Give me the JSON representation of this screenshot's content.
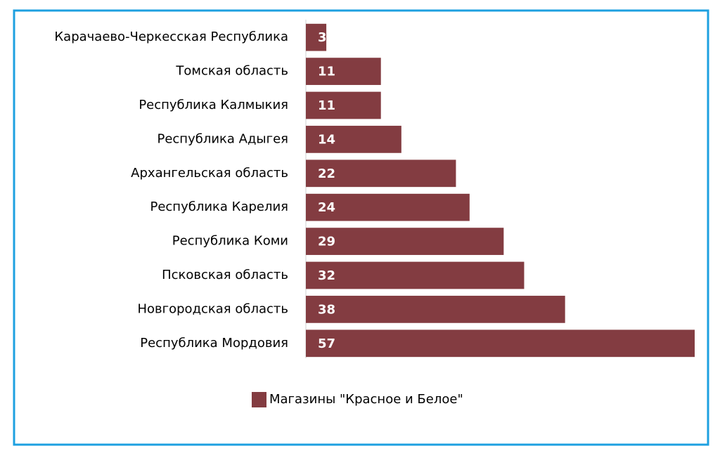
{
  "chart_data": {
    "type": "bar",
    "orientation": "horizontal",
    "categories": [
      "Карачаево-Черкесская Республика",
      "Томская область",
      "Республика Калмыкия",
      "Республика Адыгея",
      "Архангельская область",
      "Республика Карелия",
      "Республика Коми",
      "Псковская область",
      "Новгородская область",
      "Республика Мордовия"
    ],
    "series": [
      {
        "name": "Магазины \"Красное и Белое\"",
        "color": "#833c41",
        "values": [
          3,
          11,
          11,
          14,
          22,
          24,
          29,
          32,
          38,
          57
        ]
      }
    ],
    "xlim": [
      0,
      57
    ],
    "legend": "bottom"
  }
}
